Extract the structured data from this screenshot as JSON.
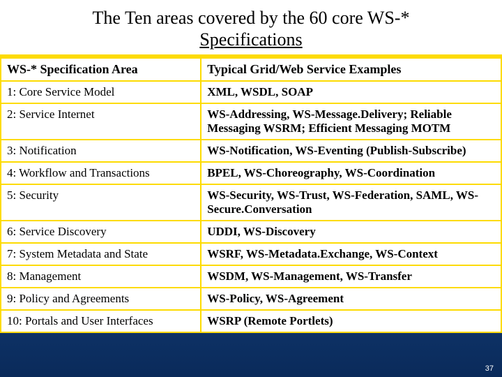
{
  "slide": {
    "title_line1": "The Ten areas covered by the 60 core WS-*",
    "title_line2": "Specifications",
    "page_number": "37",
    "background_gradient": [
      "#0a2a5a",
      "#1a4a8a",
      "#0a2a5a"
    ],
    "table_border_color": "#fddb00",
    "table_bg_color": "#ffffff",
    "text_color": "#000000",
    "title_fontsize": 26,
    "header_fontsize": 18,
    "cell_fontsize": 17
  },
  "table": {
    "columns": [
      "WS-* Specification Area",
      "Typical Grid/Web Service Examples"
    ],
    "col_widths": [
      "40%",
      "60%"
    ],
    "rows": [
      [
        "1: Core Service Model",
        "XML, WSDL, SOAP"
      ],
      [
        "2: Service Internet",
        "WS-Addressing, WS-Message.Delivery; Reliable Messaging WSRM; Efficient Messaging MOTM"
      ],
      [
        "3: Notification",
        "WS-Notification, WS-Eventing (Publish-Subscribe)"
      ],
      [
        "4: Workflow and Transactions",
        "BPEL, WS-Choreography, WS-Coordination"
      ],
      [
        "5: Security",
        "WS-Security, WS-Trust, WS-Federation, SAML, WS-Secure.Conversation"
      ],
      [
        "6: Service Discovery",
        "UDDI, WS-Discovery"
      ],
      [
        "7: System Metadata and State",
        "WSRF, WS-Metadata.Exchange, WS-Context"
      ],
      [
        "8: Management",
        "WSDM, WS-Management, WS-Transfer"
      ],
      [
        "9: Policy and Agreements",
        "WS-Policy, WS-Agreement"
      ],
      [
        "10: Portals and User Interfaces",
        "WSRP (Remote Portlets)"
      ]
    ]
  }
}
